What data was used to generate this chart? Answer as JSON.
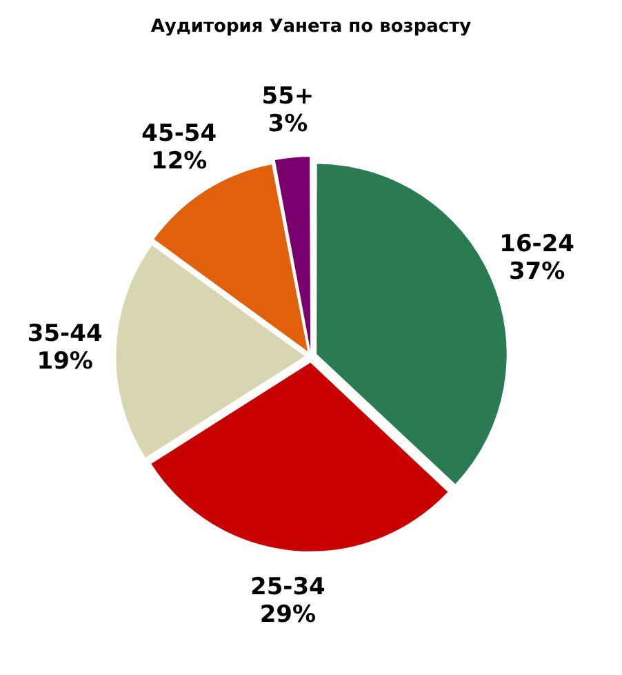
{
  "chart_data": {
    "type": "pie",
    "title": "Аудитория Уанета по возрасту",
    "categories": [
      "16-24",
      "25-34",
      "35-44",
      "45-54",
      "55+"
    ],
    "values": [
      37,
      29,
      19,
      12,
      3
    ],
    "value_labels": [
      "37%",
      "29%",
      "19%",
      "12%",
      "3%"
    ],
    "colors": [
      "#2a7a52",
      "#c80000",
      "#d8d6b0",
      "#e0600c",
      "#7a0070"
    ],
    "legend": false
  }
}
